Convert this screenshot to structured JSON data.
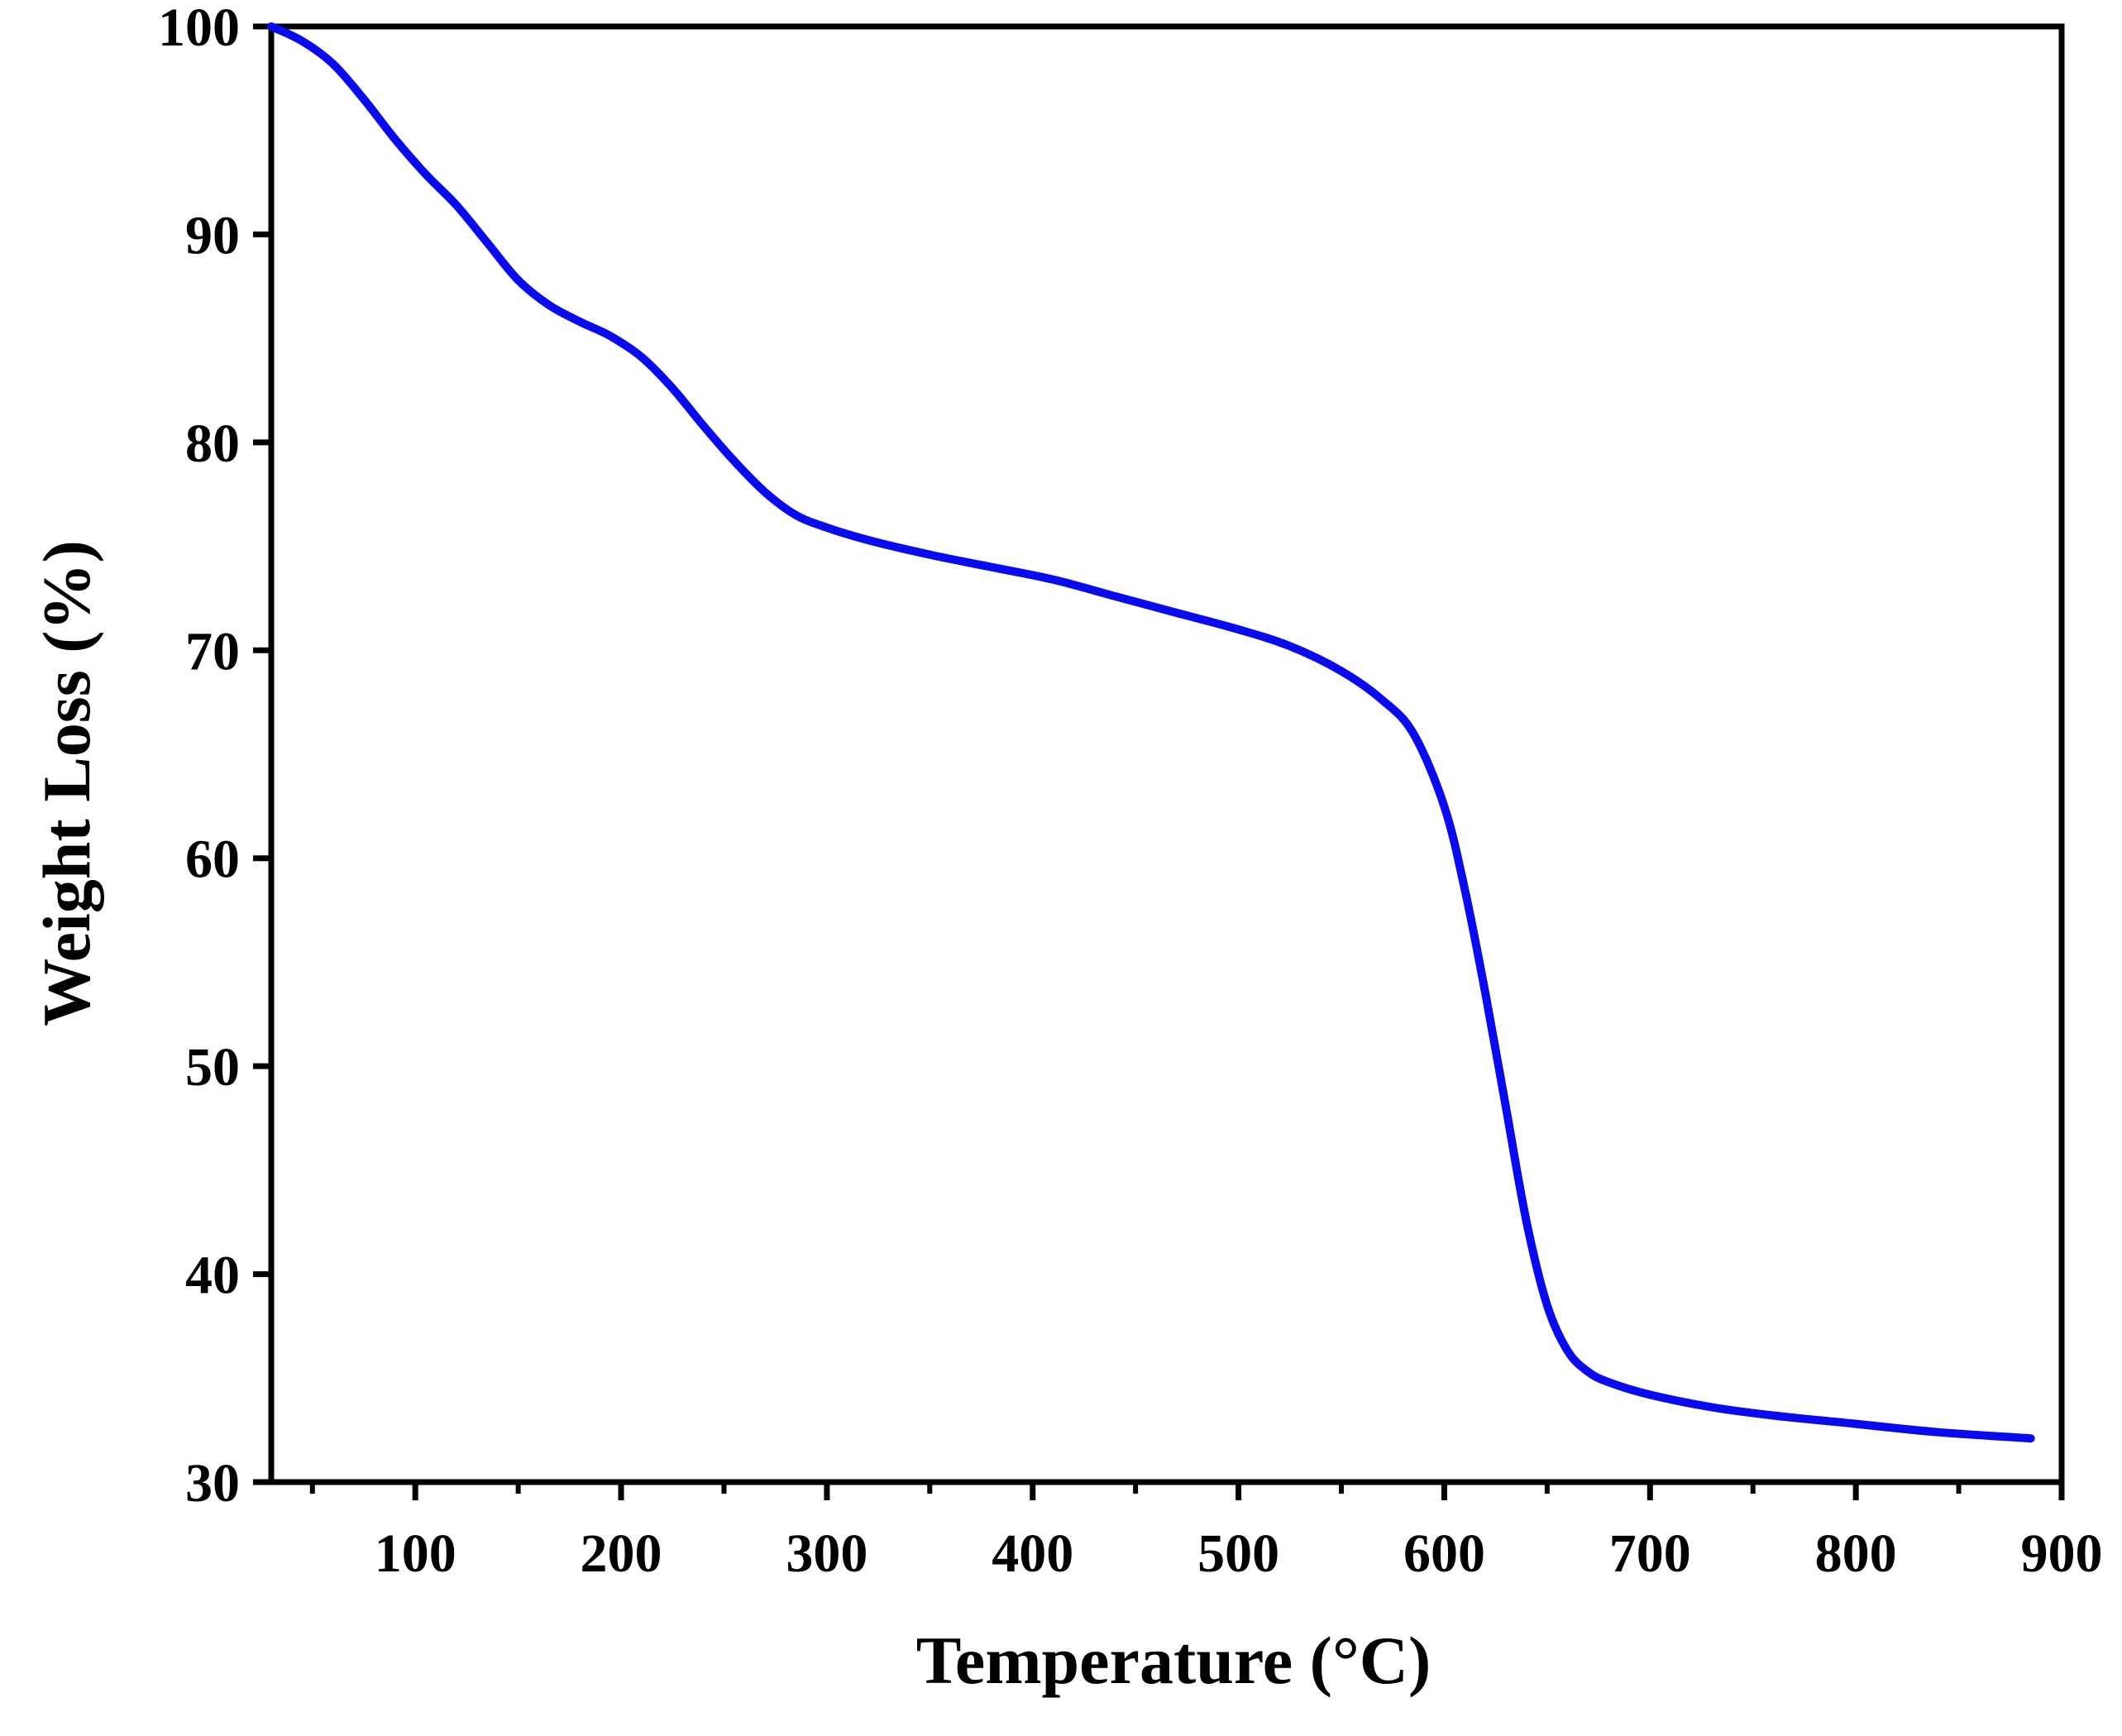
{
  "chart_data": {
    "type": "line",
    "title": "",
    "xlabel": "Temperature (°C)",
    "ylabel": "Weight Loss (%)",
    "xlim": [
      30,
      900
    ],
    "ylim": [
      30,
      100
    ],
    "xticks": [
      100,
      200,
      300,
      400,
      500,
      600,
      700,
      800,
      900
    ],
    "xtick_labels": [
      "100",
      "200",
      "300",
      "400",
      "500",
      "600",
      "700",
      "800",
      "900"
    ],
    "xminor": [
      50,
      150,
      250,
      350,
      450,
      550,
      650,
      750,
      850
    ],
    "yticks": [
      30,
      40,
      50,
      60,
      70,
      80,
      90,
      100
    ],
    "ytick_labels": [
      "30",
      "40",
      "50",
      "60",
      "70",
      "80",
      "90",
      "100"
    ],
    "grid": false,
    "line_color": "#0a0af0",
    "series": [
      {
        "name": "Weight Loss",
        "x": [
          30,
          45,
          60,
          75,
          90,
          105,
          120,
          135,
          150,
          165,
          180,
          195,
          210,
          225,
          240,
          255,
          270,
          285,
          300,
          320,
          350,
          380,
          410,
          440,
          470,
          500,
          525,
          550,
          570,
          585,
          600,
          610,
          620,
          630,
          640,
          650,
          660,
          670,
          680,
          700,
          730,
          760,
          800,
          840,
          885
        ],
        "y": [
          100,
          99.3,
          98.2,
          96.5,
          94.6,
          92.9,
          91.4,
          89.6,
          87.8,
          86.6,
          85.8,
          85.1,
          84.1,
          82.6,
          80.8,
          79.1,
          77.6,
          76.5,
          75.9,
          75.3,
          74.6,
          74.0,
          73.4,
          72.6,
          71.8,
          71.0,
          70.2,
          69.0,
          67.6,
          66.0,
          62.5,
          58.5,
          53.5,
          48.0,
          42.5,
          38.5,
          36.3,
          35.3,
          34.8,
          34.2,
          33.6,
          33.2,
          32.8,
          32.4,
          32.1
        ]
      }
    ]
  }
}
